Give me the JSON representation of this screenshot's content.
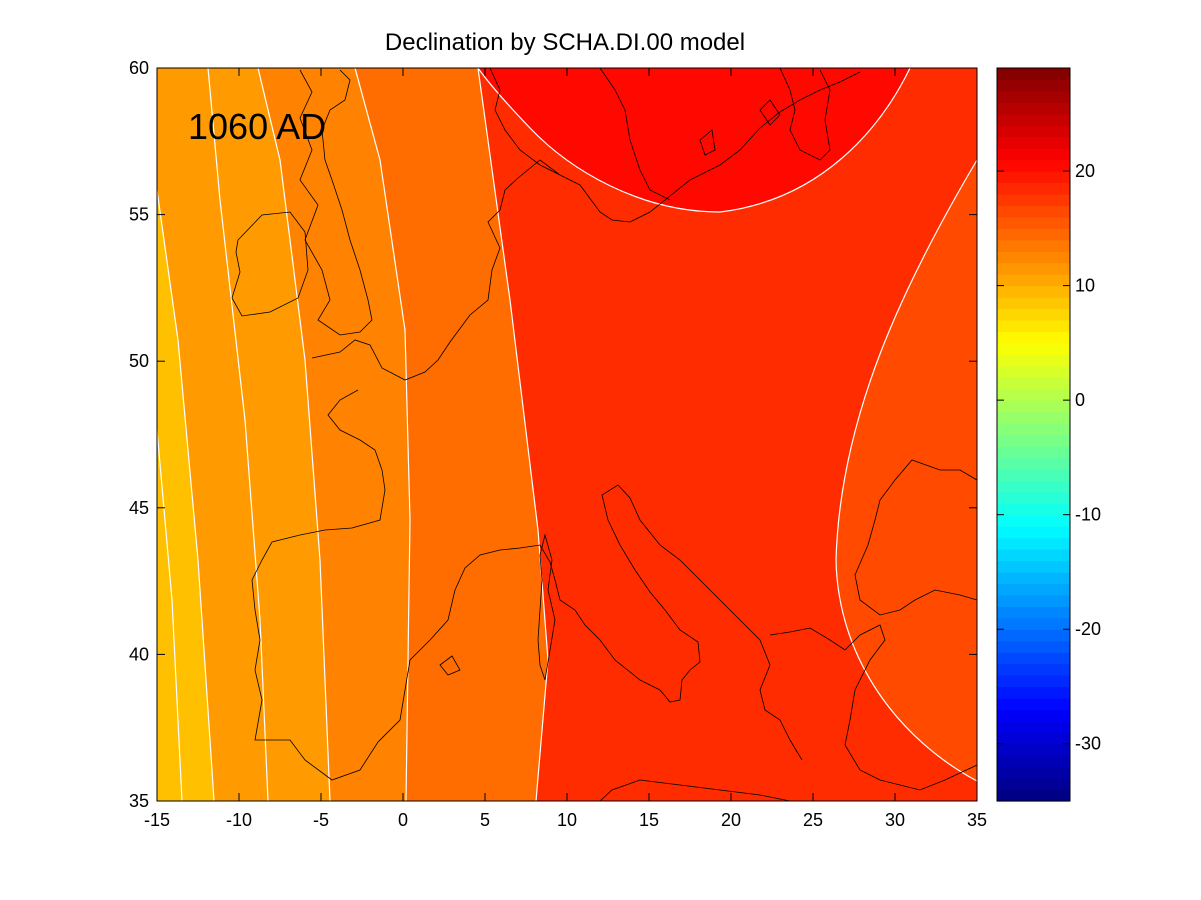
{
  "chart_data": {
    "type": "heatmap",
    "title": "Declination by SCHA.DI.00 model",
    "annotation": "1060 AD",
    "x_axis": {
      "range": [
        -15,
        35
      ],
      "ticks": [
        -15,
        -10,
        -5,
        0,
        5,
        10,
        15,
        20,
        25,
        30,
        35
      ]
    },
    "y_axis": {
      "range": [
        35,
        60
      ],
      "ticks": [
        35,
        40,
        45,
        50,
        55,
        60
      ]
    },
    "colorbar": {
      "range": [
        -35,
        29
      ],
      "ticks": [
        -30,
        -20,
        -10,
        0,
        10,
        20
      ],
      "colormap": "jet"
    },
    "contour_bands": [
      {
        "value": 9,
        "color": "#ffc000"
      },
      {
        "value": 12,
        "color": "#ff9b00"
      },
      {
        "value": 14,
        "color": "#ff8200"
      },
      {
        "value": 16,
        "color": "#ff6c00"
      },
      {
        "value": 18,
        "color": "#ff4a00"
      },
      {
        "value": 20,
        "color": "#ff2c00"
      },
      {
        "value": 22,
        "color": "#ff0800"
      }
    ],
    "contour_line_color": "#ffffff",
    "coastline_color": "#000000"
  }
}
